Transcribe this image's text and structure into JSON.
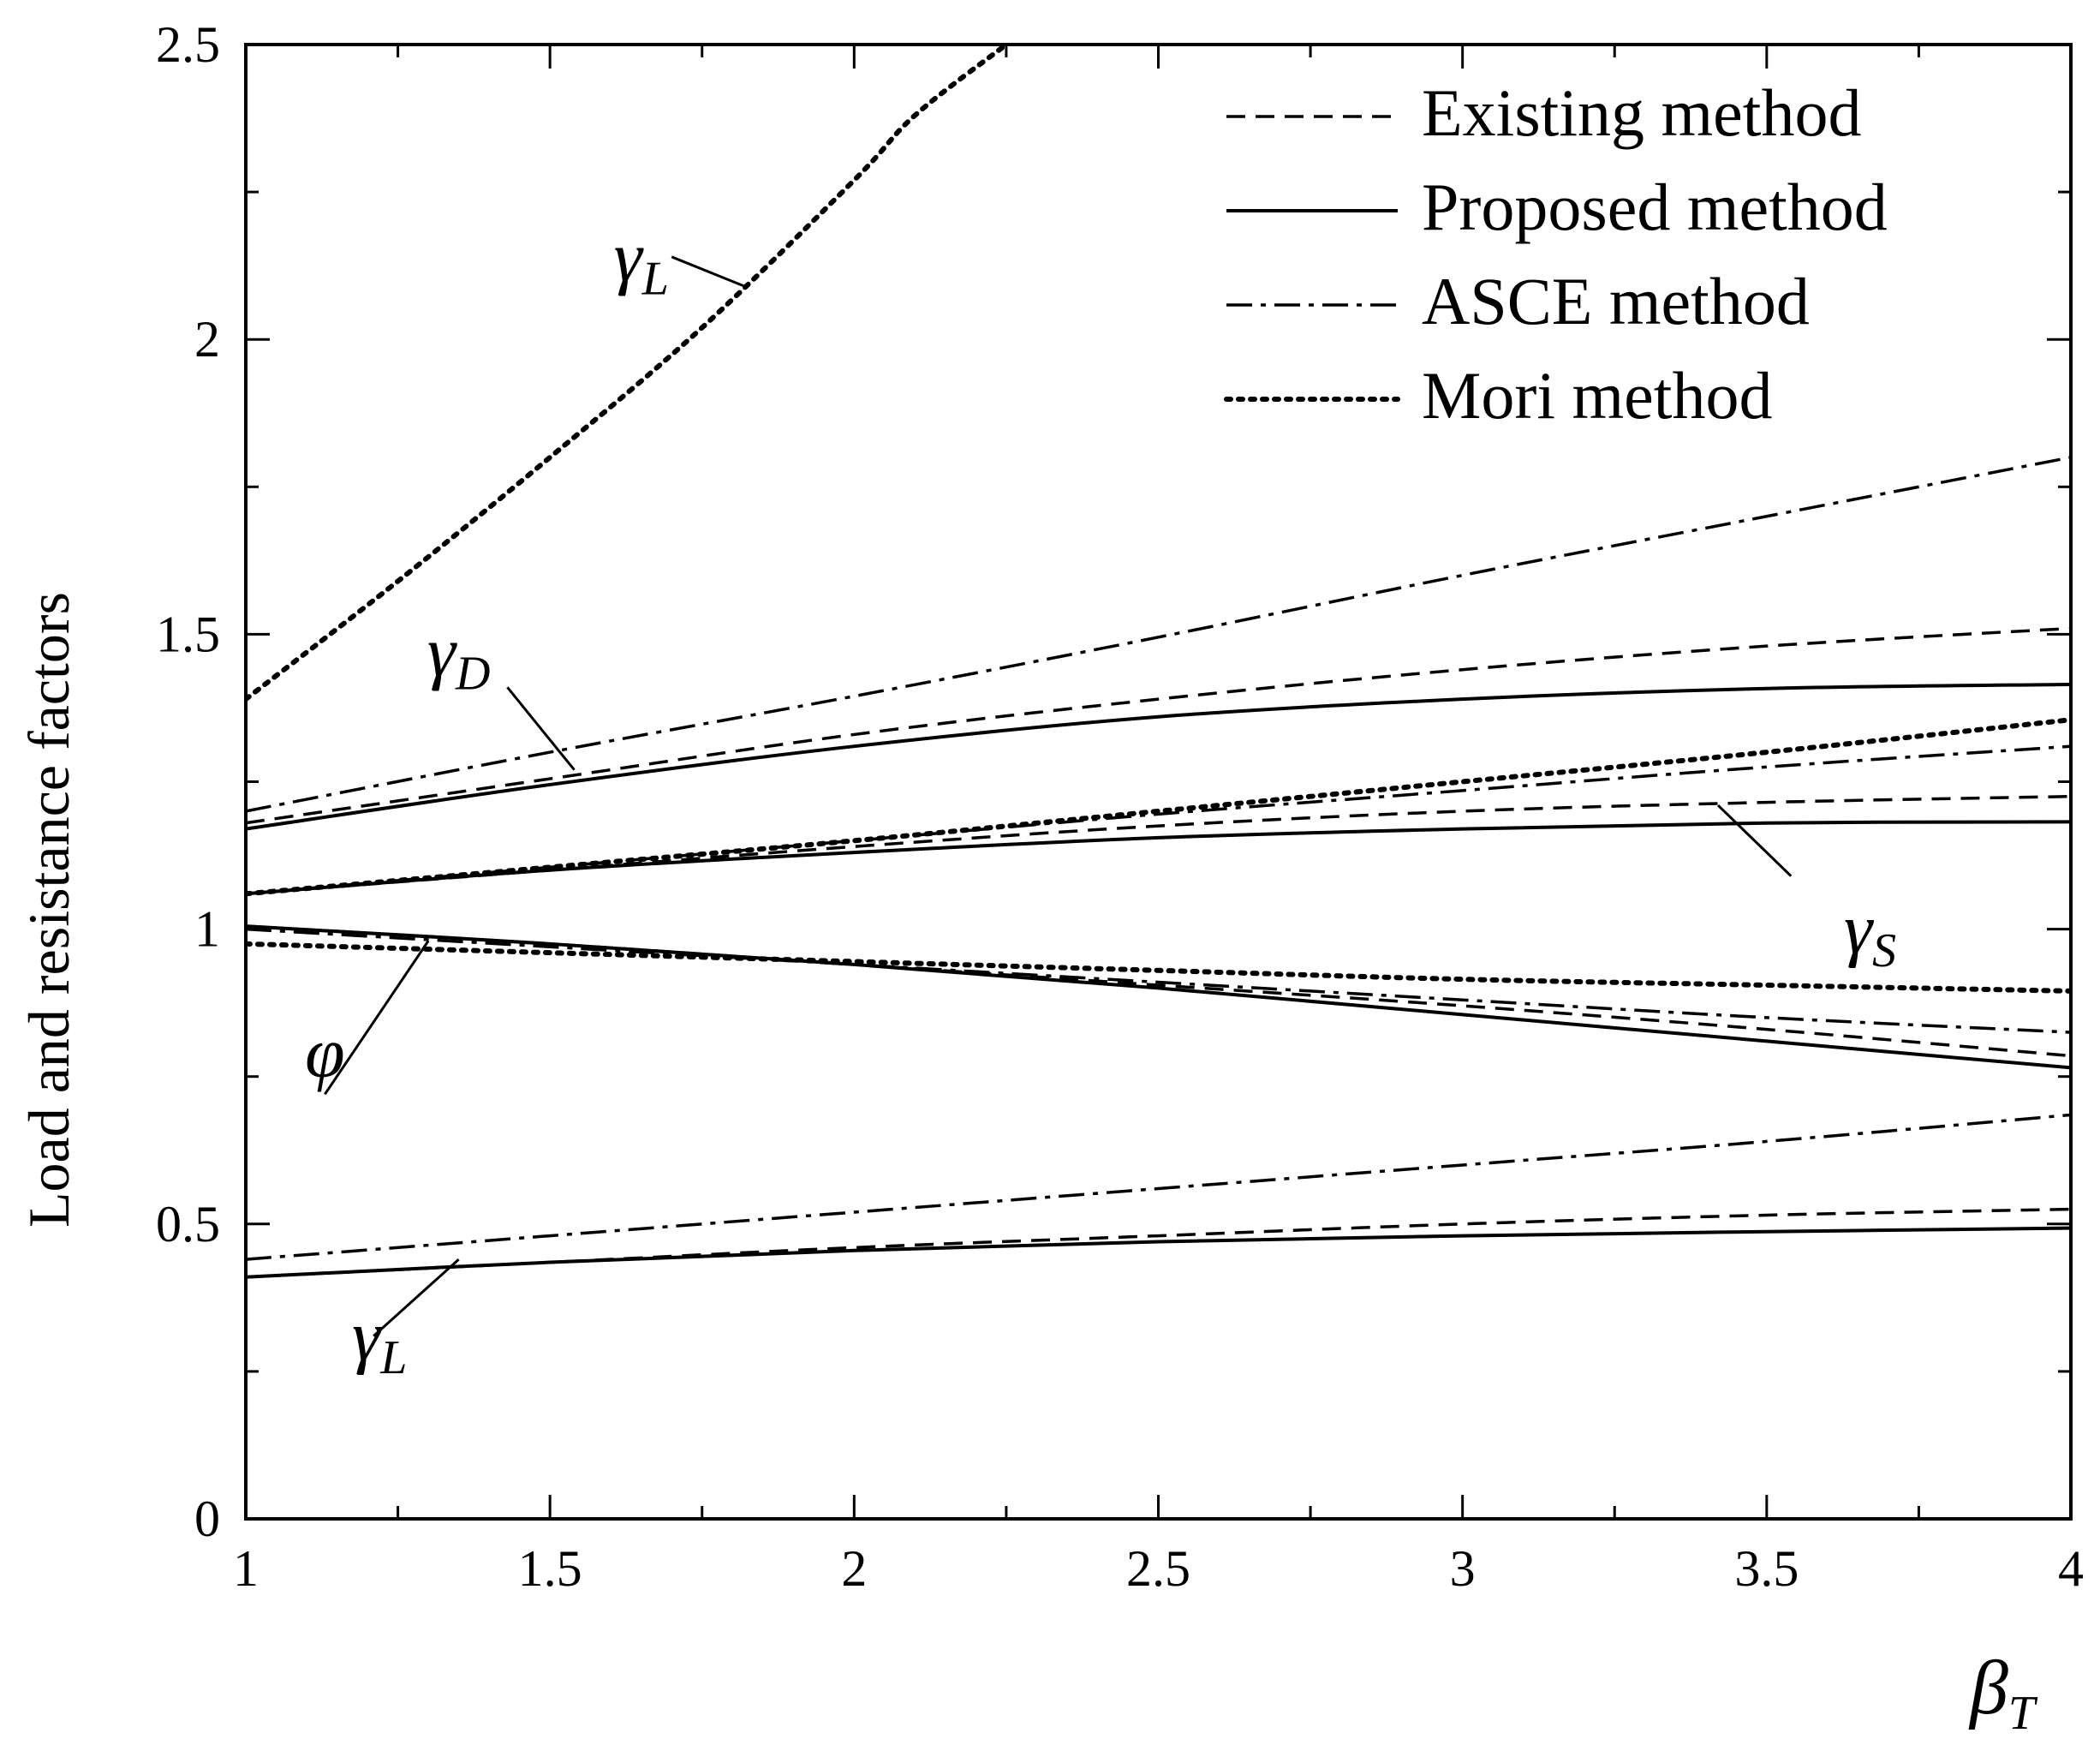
{
  "chart_data": {
    "type": "line",
    "title": "",
    "xlabel": "β",
    "xlabel_sub": "T",
    "ylabel": "Load and resistance factors",
    "xlim": [
      1,
      4
    ],
    "ylim": [
      0,
      2.5
    ],
    "xticks": [
      "1",
      "1.5",
      "2",
      "2.5",
      "3",
      "3.5",
      "4"
    ],
    "yticks": [
      "0",
      "0.5",
      "1",
      "1.5",
      "2",
      "2.5"
    ],
    "legend": [
      {
        "name": "Existing method",
        "style": "dashed"
      },
      {
        "name": "Proposed method",
        "style": "solid"
      },
      {
        "name": "ASCE method",
        "style": "dashdot"
      },
      {
        "name": "Mori method",
        "style": "dotted"
      }
    ],
    "series": [
      {
        "method": "Existing method",
        "factor": "γD",
        "style": "dashed",
        "x": [
          1,
          1.5,
          2,
          2.5,
          3,
          3.5,
          4
        ],
        "y": [
          1.18,
          1.255,
          1.33,
          1.39,
          1.44,
          1.48,
          1.51
        ]
      },
      {
        "method": "Proposed method",
        "factor": "γD",
        "style": "solid",
        "x": [
          1,
          1.5,
          2,
          2.5,
          3,
          3.5,
          4
        ],
        "y": [
          1.17,
          1.245,
          1.31,
          1.36,
          1.39,
          1.408,
          1.415
        ]
      },
      {
        "method": "ASCE method",
        "factor": "γD",
        "style": "dashdot",
        "x": [
          1,
          1.5,
          2,
          2.5,
          3,
          3.5,
          4
        ],
        "y": [
          1.2,
          1.3,
          1.395,
          1.495,
          1.6,
          1.7,
          1.8
        ]
      },
      {
        "method": "Existing method",
        "factor": "γS",
        "style": "dashed",
        "x": [
          1,
          1.5,
          2,
          2.5,
          3,
          3.5,
          4
        ],
        "y": [
          1.06,
          1.1,
          1.14,
          1.175,
          1.2,
          1.215,
          1.225
        ]
      },
      {
        "method": "Proposed method",
        "factor": "γS",
        "style": "solid",
        "x": [
          1,
          1.5,
          2,
          2.5,
          3,
          3.5,
          4
        ],
        "y": [
          1.06,
          1.1,
          1.13,
          1.155,
          1.17,
          1.18,
          1.182
        ]
      },
      {
        "method": "ASCE method",
        "factor": "γS",
        "style": "dashdot",
        "x": [
          1,
          1.5,
          2,
          2.5,
          3,
          3.5,
          4
        ],
        "y": [
          1.06,
          1.105,
          1.15,
          1.195,
          1.235,
          1.275,
          1.31
        ]
      },
      {
        "method": "Mori method",
        "factor": "γS",
        "style": "dotted",
        "x": [
          1,
          1.5,
          2,
          2.5,
          3,
          3.5,
          4
        ],
        "y": [
          1.06,
          1.105,
          1.15,
          1.2,
          1.25,
          1.3,
          1.355
        ]
      },
      {
        "method": "Existing method",
        "factor": "φ",
        "style": "dashed",
        "x": [
          1,
          1.5,
          2,
          2.5,
          3,
          3.5,
          4
        ],
        "y": [
          1.005,
          0.975,
          0.94,
          0.905,
          0.87,
          0.83,
          0.785
        ]
      },
      {
        "method": "Proposed method",
        "factor": "φ",
        "style": "solid",
        "x": [
          1,
          1.5,
          2,
          2.5,
          3,
          3.5,
          4
        ],
        "y": [
          1.005,
          0.975,
          0.94,
          0.9,
          0.855,
          0.81,
          0.765
        ]
      },
      {
        "method": "ASCE method",
        "factor": "φ",
        "style": "dashdot",
        "x": [
          1,
          1.5,
          2,
          2.5,
          3,
          3.5,
          4
        ],
        "y": [
          1.0,
          0.97,
          0.94,
          0.91,
          0.88,
          0.85,
          0.825
        ]
      },
      {
        "method": "Mori method",
        "factor": "φ",
        "style": "dotted",
        "x": [
          1,
          1.5,
          2,
          2.5,
          3,
          3.5,
          4
        ],
        "y": [
          0.975,
          0.96,
          0.945,
          0.93,
          0.915,
          0.905,
          0.895
        ]
      },
      {
        "method": "Existing method",
        "factor": "γL",
        "style": "dashed",
        "x": [
          1,
          1.5,
          2,
          2.5,
          3,
          3.5,
          4
        ],
        "y": [
          0.41,
          0.435,
          0.46,
          0.48,
          0.5,
          0.515,
          0.525
        ]
      },
      {
        "method": "Proposed method",
        "factor": "γL",
        "style": "solid",
        "x": [
          1,
          1.5,
          2,
          2.5,
          3,
          3.5,
          4
        ],
        "y": [
          0.41,
          0.435,
          0.455,
          0.47,
          0.48,
          0.487,
          0.493
        ]
      },
      {
        "method": "ASCE method",
        "factor": "γL",
        "style": "dashdot",
        "x": [
          1,
          1.5,
          2,
          2.5,
          3,
          3.5,
          4
        ],
        "y": [
          0.44,
          0.48,
          0.52,
          0.56,
          0.6,
          0.64,
          0.685
        ]
      },
      {
        "method": "Mori method",
        "factor": "γL",
        "style": "dotted",
        "x": [
          1,
          1.25,
          1.5,
          1.75,
          2,
          2.1,
          2.25
        ],
        "y": [
          1.39,
          1.59,
          1.8,
          2.02,
          2.27,
          2.38,
          2.5
        ]
      }
    ],
    "annotations": [
      {
        "symbol": "γ",
        "sub": "L",
        "x": 1.65,
        "y": 2.1
      },
      {
        "symbol": "γ",
        "sub": "D",
        "x": 1.35,
        "y": 1.43
      },
      {
        "symbol": "γ",
        "sub": "S",
        "x": 3.67,
        "y": 0.96
      },
      {
        "symbol": "φ",
        "sub": "",
        "x": 1.13,
        "y": 0.75
      },
      {
        "symbol": "γ",
        "sub": "L",
        "x": 1.22,
        "y": 0.27
      }
    ]
  }
}
